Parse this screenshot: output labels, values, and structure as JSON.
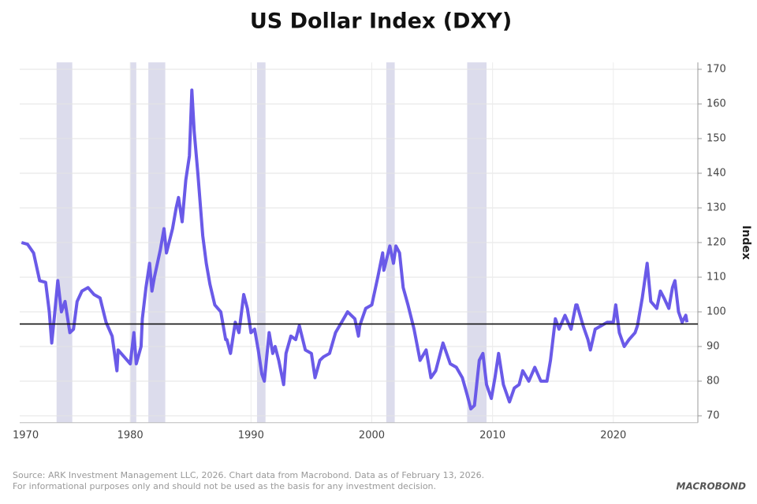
{
  "chart_data": {
    "type": "line",
    "title": "US Dollar Index (DXY)",
    "y_axis_label": "Index",
    "source": "Source: ARK Investment Management LLC, 2026. Chart data from Macrobond. Data as of February 13, 2026.",
    "disclaimer": "For informational purposes only and should not be used as the basis for any investment decision.",
    "logo": "MACROBOND",
    "color": "#6a5ae8",
    "band_color": "#dcdcec",
    "grid": true,
    "y_axis_side": "right",
    "xlim": [
      1970,
      2027
    ],
    "xticks": [
      1970,
      1980,
      1990,
      2000,
      2010,
      2020
    ],
    "ylim": [
      68,
      172
    ],
    "yticks": [
      70,
      80,
      90,
      100,
      110,
      120,
      130,
      140,
      150,
      160,
      170
    ],
    "reference_line": 96.5,
    "recessions": [
      [
        1973.9,
        1975.2
      ],
      [
        1980.0,
        1980.5
      ],
      [
        1981.5,
        1982.9
      ],
      [
        1990.5,
        1991.2
      ],
      [
        2001.2,
        2001.9
      ],
      [
        2007.9,
        2009.5
      ]
    ],
    "x": [
      1971,
      1971.5,
      1972,
      1972.5,
      1973,
      1973.3,
      1973.5,
      1973.7,
      1974,
      1974.3,
      1974.6,
      1975,
      1975.3,
      1975.6,
      1976,
      1976.5,
      1977,
      1977.5,
      1978,
      1978.5,
      1978.9,
      1979,
      1979.5,
      1980,
      1980.3,
      1980.5,
      1980.9,
      1981,
      1981.3,
      1981.6,
      1981.8,
      1982,
      1982.5,
      1982.8,
      1983,
      1983.5,
      1983.8,
      1984,
      1984.3,
      1984.6,
      1984.9,
      1985.1,
      1985.3,
      1985.6,
      1986,
      1986.3,
      1986.6,
      1987,
      1987.5,
      1987.9,
      1988,
      1988.3,
      1988.7,
      1989,
      1989.4,
      1989.7,
      1990,
      1990.3,
      1990.6,
      1990.9,
      1991.1,
      1991.5,
      1991.8,
      1992,
      1992.3,
      1992.7,
      1992.9,
      1993.3,
      1993.7,
      1994,
      1994.5,
      1995,
      1995.3,
      1995.7,
      1996,
      1996.5,
      1997,
      1997.5,
      1998,
      1998.6,
      1998.9,
      1999,
      1999.5,
      2000,
      2000.5,
      2000.9,
      2001,
      2001.5,
      2001.8,
      2002,
      2002.3,
      2002.6,
      2003,
      2003.5,
      2004,
      2004.5,
      2004.9,
      2005.3,
      2005.9,
      2006.5,
      2007,
      2007.5,
      2007.9,
      2008.2,
      2008.5,
      2008.9,
      2009.2,
      2009.5,
      2009.9,
      2010.2,
      2010.5,
      2010.9,
      2011.4,
      2011.8,
      2012.2,
      2012.5,
      2013,
      2013.5,
      2014,
      2014.5,
      2014.8,
      2015.2,
      2015.5,
      2016,
      2016.5,
      2016.9,
      2017,
      2017.5,
      2017.9,
      2018.1,
      2018.5,
      2019,
      2019.5,
      2020,
      2020.2,
      2020.5,
      2020.9,
      2021.3,
      2021.8,
      2022,
      2022.4,
      2022.8,
      2023.1,
      2023.6,
      2023.9,
      2024.2,
      2024.6,
      2024.9,
      2025.1,
      2025.4,
      2025.7,
      2026,
      2026.1
    ],
    "values": [
      120,
      119.5,
      117,
      109,
      108.5,
      100,
      91,
      98,
      109,
      100,
      103,
      94,
      95,
      103,
      106,
      107,
      105,
      104,
      97,
      93,
      83,
      89,
      87,
      85,
      94,
      85,
      90,
      98,
      107,
      114,
      106,
      110,
      118,
      124,
      117,
      124,
      130,
      133,
      126,
      138,
      145,
      164,
      152,
      140,
      122,
      114,
      108,
      102,
      100,
      92,
      92,
      88,
      97,
      94,
      105,
      101,
      94,
      95,
      89,
      82,
      80,
      94,
      88,
      90,
      86,
      79,
      88,
      93,
      92,
      96,
      89,
      88,
      81,
      86,
      87,
      88,
      94,
      97,
      100,
      98,
      93,
      96,
      101,
      102,
      110,
      117,
      112,
      119,
      114,
      119,
      117,
      107,
      102,
      95,
      86,
      89,
      81,
      83,
      91,
      85,
      84,
      81,
      76,
      72,
      73,
      86,
      88,
      79,
      75,
      81,
      88,
      79,
      74,
      78,
      79,
      83,
      80,
      84,
      80,
      80,
      86,
      98,
      95,
      99,
      95,
      102,
      102,
      96,
      92,
      89,
      95,
      96,
      97,
      97,
      102,
      94,
      90,
      92,
      94,
      96,
      104,
      114,
      103,
      101,
      106,
      104,
      101,
      107,
      109,
      100,
      97,
      99,
      97
    ]
  }
}
